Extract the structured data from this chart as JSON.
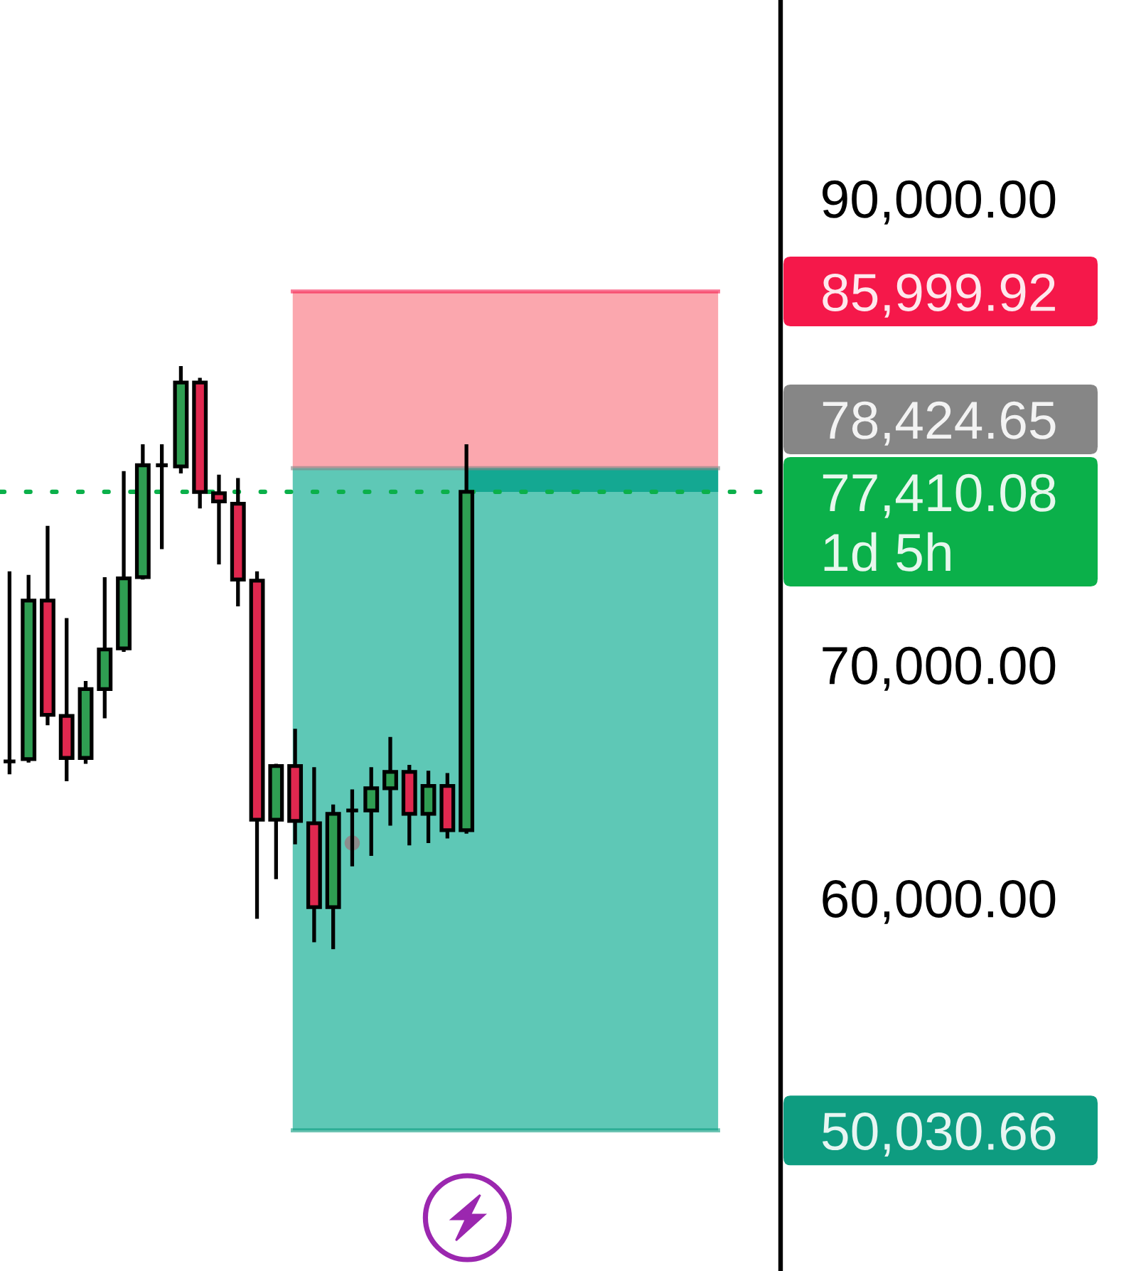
{
  "chart_data": {
    "type": "candlestick",
    "categories": [
      null,
      null,
      null,
      null,
      null,
      null,
      null,
      null,
      null,
      null,
      null,
      null,
      null,
      null,
      null,
      null,
      null,
      null,
      null,
      null,
      null,
      null,
      null,
      null,
      null,
      null,
      null,
      null,
      null,
      null,
      null,
      null,
      null,
      null,
      null,
      null,
      null,
      null,
      null,
      null,
      null
    ],
    "ohlc": [
      [
        65850,
        74000,
        65300,
        65850
      ],
      [
        65950,
        73850,
        65800,
        72750
      ],
      [
        72750,
        75950,
        67400,
        67850
      ],
      [
        67800,
        72000,
        65000,
        66000
      ],
      [
        66000,
        69300,
        65750,
        68950
      ],
      [
        68950,
        73750,
        67700,
        70650
      ],
      [
        70700,
        78300,
        70550,
        73700
      ],
      [
        73750,
        79450,
        73650,
        78550
      ],
      [
        78550,
        79450,
        74950,
        78550
      ],
      [
        78500,
        82800,
        78200,
        82100
      ],
      [
        82100,
        82300,
        76700,
        77400
      ],
      [
        77350,
        78150,
        74300,
        77000
      ],
      [
        76900,
        78000,
        72500,
        73650
      ],
      [
        73600,
        74000,
        59100,
        63350
      ],
      [
        63350,
        65750,
        60800,
        65650
      ],
      [
        65650,
        67250,
        62300,
        63300
      ],
      [
        63200,
        65600,
        58100,
        59600
      ],
      [
        59600,
        64000,
        57800,
        63600
      ],
      [
        63750,
        64650,
        61350,
        63750
      ],
      [
        63750,
        65600,
        61800,
        64700
      ],
      [
        64700,
        66900,
        63100,
        65400
      ],
      [
        65400,
        65700,
        62250,
        63600
      ],
      [
        63600,
        65450,
        62350,
        64800
      ],
      [
        64800,
        65350,
        62550,
        62900
      ],
      [
        62900,
        79450,
        62750,
        77410.08
      ],
      null,
      null,
      null,
      null,
      null,
      null,
      null,
      null,
      null,
      null,
      null,
      null,
      null,
      null,
      null,
      null
    ],
    "colors": [
      "#000000",
      "#2f9e52",
      "#e0284f",
      "#e0284f",
      "#2f9e52",
      "#2f9e52",
      "#2f9e52",
      "#2f9e52",
      "#000000",
      "#2f9e52",
      "#e0284f",
      "#e0284f",
      "#e0284f",
      "#e0284f",
      "#2f9e52",
      "#e0284f",
      "#e0284f",
      "#2f9e52",
      "#000000",
      "#2f9e52",
      "#2f9e52",
      "#e0284f",
      "#2f9e52",
      "#e0284f",
      "#2f9e52",
      null,
      null,
      null,
      null,
      null,
      null,
      null,
      null,
      null,
      null,
      null,
      null,
      null,
      null,
      null,
      null
    ],
    "series": [
      {
        "type": "scatter",
        "color": "#8c8c8c",
        "marker": "circle",
        "values": [
          null,
          null,
          null,
          null,
          null,
          null,
          null,
          null,
          null,
          null,
          null,
          null,
          null,
          null,
          null,
          null,
          null,
          null,
          62350,
          null,
          null,
          null,
          null,
          null,
          null,
          null,
          null,
          null,
          null,
          null,
          null,
          null,
          null,
          null,
          null,
          null,
          null,
          null,
          null,
          null,
          null
        ]
      }
    ],
    "ylim": [
      44000,
      98500
    ],
    "yticks": [
      {
        "value": 60000,
        "label": "60,000.00"
      },
      {
        "value": 70000,
        "label": "70,000.00"
      },
      {
        "value": 90000,
        "label": "90,000.00"
      }
    ],
    "tick_labels": "y",
    "bands": [
      {
        "axis": "y",
        "from": 78424.65,
        "to": 85999.92,
        "color": "#fba7ae"
      },
      {
        "axis": "y",
        "from": 50030.66,
        "to": 78424.65,
        "color": "#5ec8b6"
      },
      {
        "axis": "y",
        "from": 77410.08,
        "to": 78424.65,
        "color": "#14a892"
      }
    ],
    "ref_lines": [
      {
        "axis": "y",
        "value": 85999.92,
        "label": "85,999.92",
        "color": "#f5184a",
        "line_style": "solid"
      },
      {
        "axis": "y",
        "value": 78424.65,
        "label": "78,424.65",
        "color": "#868686",
        "line_style": "solid"
      },
      {
        "axis": "y",
        "value": 77410.08,
        "label": "77,410.08\n1d 5h",
        "color": "#0bb04a",
        "line_style": "dotted"
      },
      {
        "axis": "y",
        "value": 50030.66,
        "label": "50,030.66",
        "color": "#0e9c80",
        "line_style": "solid"
      }
    ]
  }
}
